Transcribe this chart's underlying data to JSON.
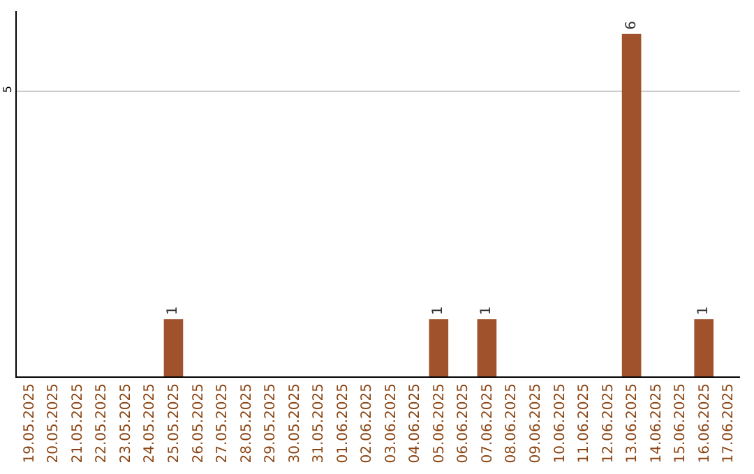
{
  "chart_data": {
    "type": "bar",
    "categories": [
      "19.05.2025",
      "20.05.2025",
      "21.05.2025",
      "22.05.2025",
      "23.05.2025",
      "24.05.2025",
      "25.05.2025",
      "26.05.2025",
      "27.05.2025",
      "28.05.2025",
      "29.05.2025",
      "30.05.2025",
      "31.05.2025",
      "01.06.2025",
      "02.06.2025",
      "03.06.2025",
      "04.06.2025",
      "05.06.2025",
      "06.06.2025",
      "07.06.2025",
      "08.06.2025",
      "09.06.2025",
      "10.06.2025",
      "11.06.2025",
      "12.06.2025",
      "13.06.2025",
      "14.06.2025",
      "15.06.2025",
      "16.06.2025",
      "17.06.2025"
    ],
    "values": [
      0,
      0,
      0,
      0,
      0,
      0,
      1,
      0,
      0,
      0,
      0,
      0,
      0,
      0,
      0,
      0,
      0,
      1,
      0,
      1,
      0,
      0,
      0,
      0,
      0,
      6,
      0,
      0,
      1,
      0
    ],
    "value_labels": [
      null,
      null,
      null,
      null,
      null,
      null,
      "1",
      null,
      null,
      null,
      null,
      null,
      null,
      null,
      null,
      null,
      null,
      "1",
      null,
      "1",
      null,
      null,
      null,
      null,
      null,
      "6",
      null,
      null,
      "1",
      null
    ],
    "color": "#a0522d",
    "ylim": [
      0,
      6.4
    ],
    "yticks": [
      5
    ],
    "grid": "y",
    "legend": false
  }
}
